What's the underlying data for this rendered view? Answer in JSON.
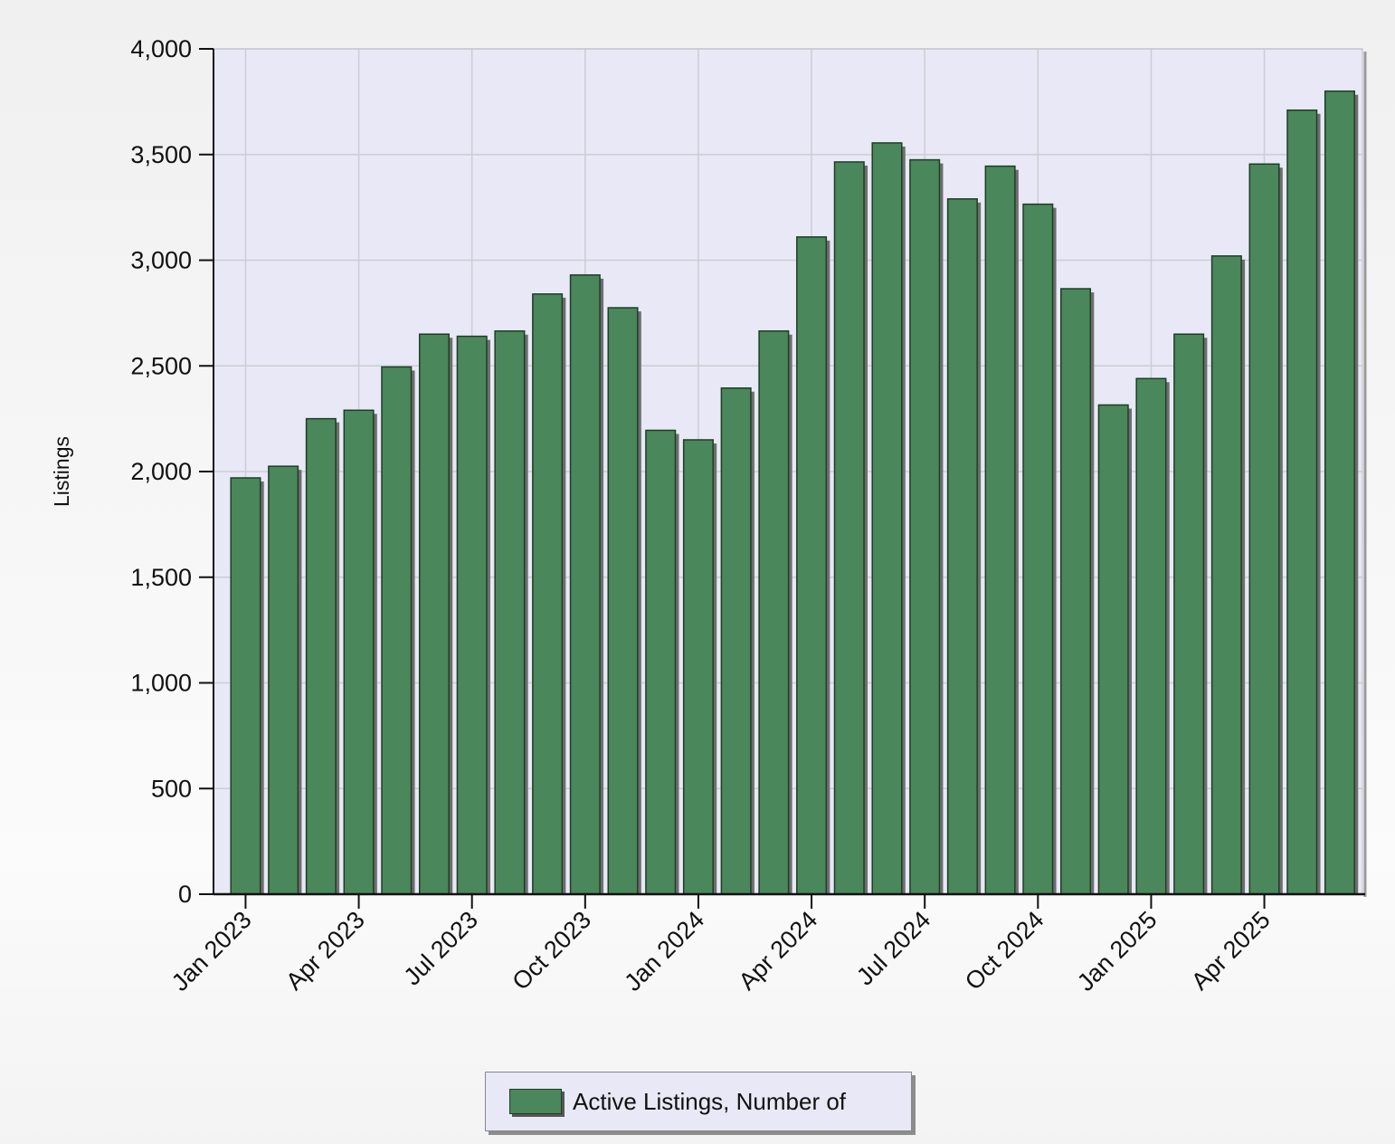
{
  "chart_data": {
    "type": "bar",
    "ylabel": "Listings",
    "ylim": [
      0,
      4000
    ],
    "yticks": [
      0,
      500,
      1000,
      1500,
      2000,
      2500,
      3000,
      3500,
      4000
    ],
    "ytick_labels": [
      "0",
      "500",
      "1,000",
      "1,500",
      "2,000",
      "2,500",
      "3,000",
      "3,500",
      "4,000"
    ],
    "xtick_labels": [
      "Jan 2023",
      "Apr 2023",
      "Jul 2023",
      "Oct 2023",
      "Jan 2024",
      "Apr 2024",
      "Jul 2024",
      "Oct 2024",
      "Jan 2025",
      "Apr 2025"
    ],
    "categories": [
      "Jan 2023",
      "Feb 2023",
      "Mar 2023",
      "Apr 2023",
      "May 2023",
      "Jun 2023",
      "Jul 2023",
      "Aug 2023",
      "Sep 2023",
      "Oct 2023",
      "Nov 2023",
      "Dec 2023",
      "Jan 2024",
      "Feb 2024",
      "Mar 2024",
      "Apr 2024",
      "May 2024",
      "Jun 2024",
      "Jul 2024",
      "Aug 2024",
      "Sep 2024",
      "Oct 2024",
      "Nov 2024",
      "Dec 2024",
      "Jan 2025",
      "Feb 2025",
      "Mar 2025",
      "Apr 2025",
      "May 2025",
      "Jun 2025"
    ],
    "series": [
      {
        "name": "Active Listings, Number of",
        "color": "#4a875a",
        "values": [
          1970,
          2025,
          2250,
          2290,
          2495,
          2650,
          2640,
          2665,
          2840,
          2930,
          2775,
          2195,
          2150,
          2395,
          2665,
          3110,
          3465,
          3555,
          3475,
          3290,
          3445,
          3265,
          2865,
          2315,
          2440,
          2650,
          3020,
          3455,
          3710,
          3800
        ]
      }
    ],
    "grid": true,
    "legend_position": "bottom-center"
  }
}
